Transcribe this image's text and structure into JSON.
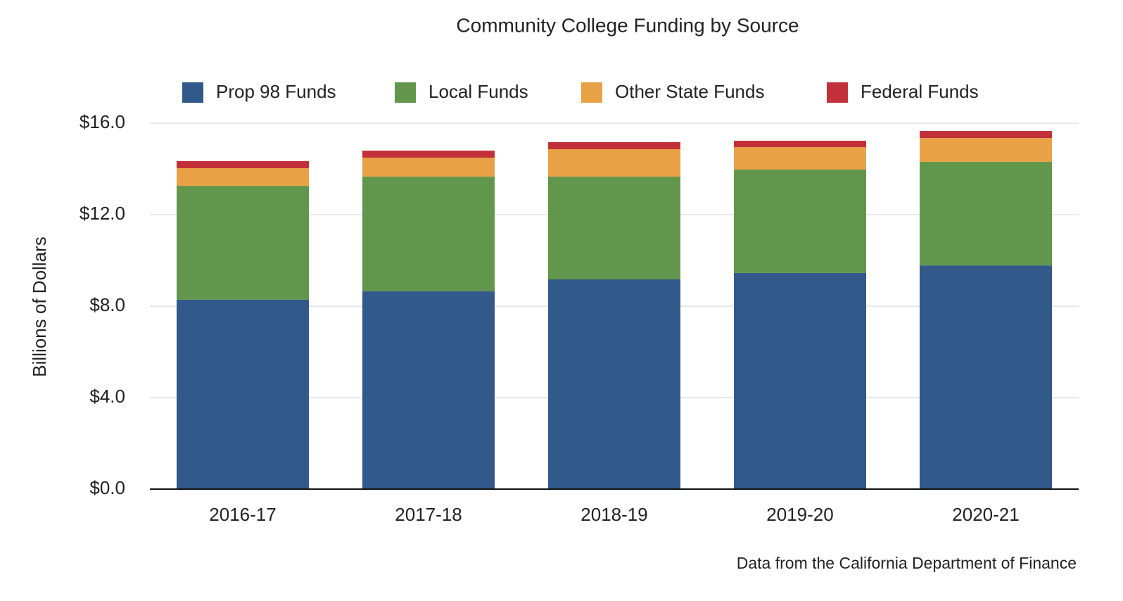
{
  "chart_data": {
    "type": "stacked-bar",
    "title": "Community College Funding by Source",
    "y_label": "Billions of Dollars",
    "source_note": "Data from the California Department of Finance",
    "categories": [
      "2016-17",
      "2017-18",
      "2018-19",
      "2019-20",
      "2020-21"
    ],
    "series": [
      {
        "name": "Prop 98 Funds",
        "color": "#31598a",
        "values": [
          8.28,
          8.65,
          9.17,
          9.45,
          9.78
        ]
      },
      {
        "name": "Local Funds",
        "color": "#61964c",
        "values": [
          4.98,
          5.01,
          4.49,
          4.52,
          4.53
        ]
      },
      {
        "name": "Other State Funds",
        "color": "#e8a245",
        "values": [
          0.77,
          0.83,
          1.2,
          0.98,
          1.04
        ]
      },
      {
        "name": "Federal Funds",
        "color": "#c2303a",
        "values": [
          0.31,
          0.31,
          0.31,
          0.28,
          0.31
        ]
      }
    ],
    "ylim": [
      0,
      16
    ],
    "yticks": [
      {
        "value": 0,
        "label": "$0.0"
      },
      {
        "value": 4,
        "label": "$4.0"
      },
      {
        "value": 8,
        "label": "$8.0"
      },
      {
        "value": 12,
        "label": "$12.0"
      },
      {
        "value": 16,
        "label": "$16.0"
      }
    ],
    "grid": true
  }
}
